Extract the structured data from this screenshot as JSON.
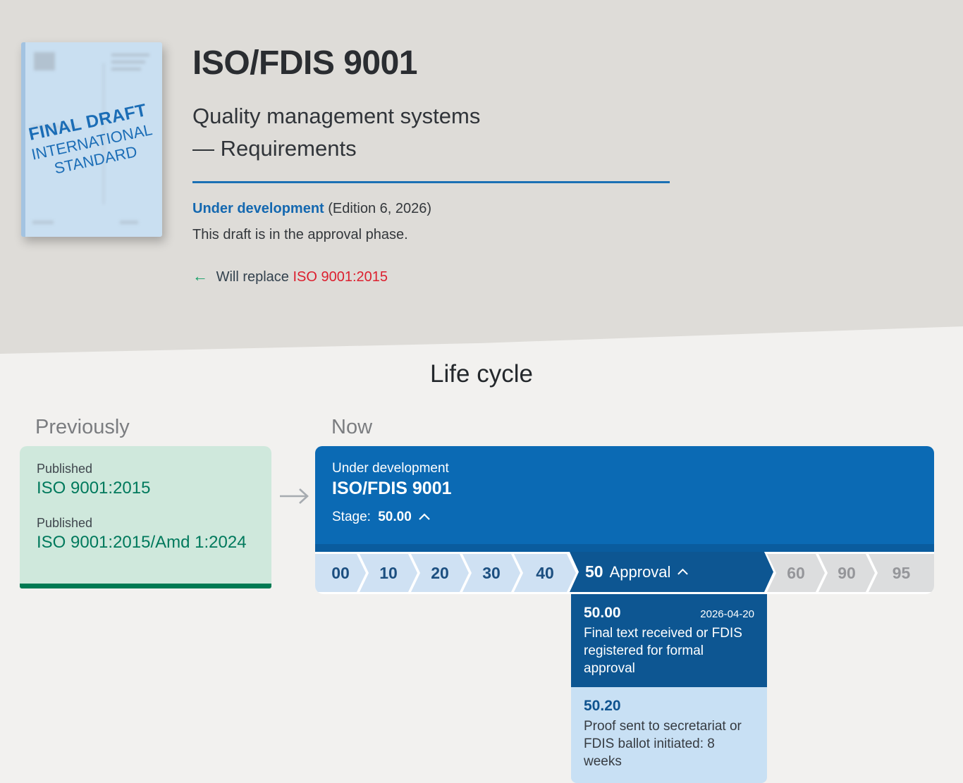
{
  "hero": {
    "title": "ISO/FDIS 9001",
    "subtitle_1": "Quality management systems",
    "subtitle_2": "— Requirements",
    "status_label": "Under development",
    "status_edition": "(Edition 6, 2026)",
    "phase_note": "This draft is in the approval phase.",
    "replace_arrow": "←",
    "replace_prefix": "Will replace",
    "replace_target": "ISO 9001:2015",
    "cover_line_1": "FINAL DRAFT",
    "cover_line_2": "INTERNATIONAL",
    "cover_line_3": "STANDARD"
  },
  "lifecycle": {
    "heading": "Life cycle",
    "previously_label": "Previously",
    "now_label": "Now",
    "previous_entries": [
      {
        "status": "Published",
        "name": "ISO 9001:2015"
      },
      {
        "status": "Published",
        "name": "ISO 9001:2015/Amd 1:2024"
      }
    ],
    "now": {
      "status": "Under development",
      "name": "ISO/FDIS 9001",
      "stage_label": "Stage:",
      "stage_value": "50.00"
    },
    "stages": [
      {
        "code": "00",
        "state": "done"
      },
      {
        "code": "10",
        "state": "done"
      },
      {
        "code": "20",
        "state": "done"
      },
      {
        "code": "30",
        "state": "done"
      },
      {
        "code": "40",
        "state": "done"
      },
      {
        "code": "50",
        "label": "Approval",
        "state": "current",
        "expanded": true
      },
      {
        "code": "60",
        "state": "future"
      },
      {
        "code": "90",
        "state": "future"
      },
      {
        "code": "95",
        "state": "future"
      }
    ],
    "substages": [
      {
        "code": "50.00",
        "date": "2026-04-20",
        "description": "Final text received or FDIS registered for formal approval",
        "state": "reached"
      },
      {
        "code": "50.20",
        "date": "",
        "description": "Proof sent to secretariat or FDIS ballot initiated: 8 weeks",
        "state": "pending"
      }
    ]
  },
  "colors": {
    "brand_blue": "#0b6ab4",
    "dark_blue": "#0d5692",
    "strip_blue": "#0a5c9e",
    "light_stage": "#cfe1f3",
    "stage_text": "#1c4f80",
    "future_gray": "#dcddde",
    "future_text": "#95969a",
    "green_card": "#cfe8dc",
    "green_text": "#00795c",
    "green_border": "#007a53",
    "link_blue": "#1468b0",
    "link_red": "#dc1f2e",
    "arrow_green": "#13a066"
  }
}
